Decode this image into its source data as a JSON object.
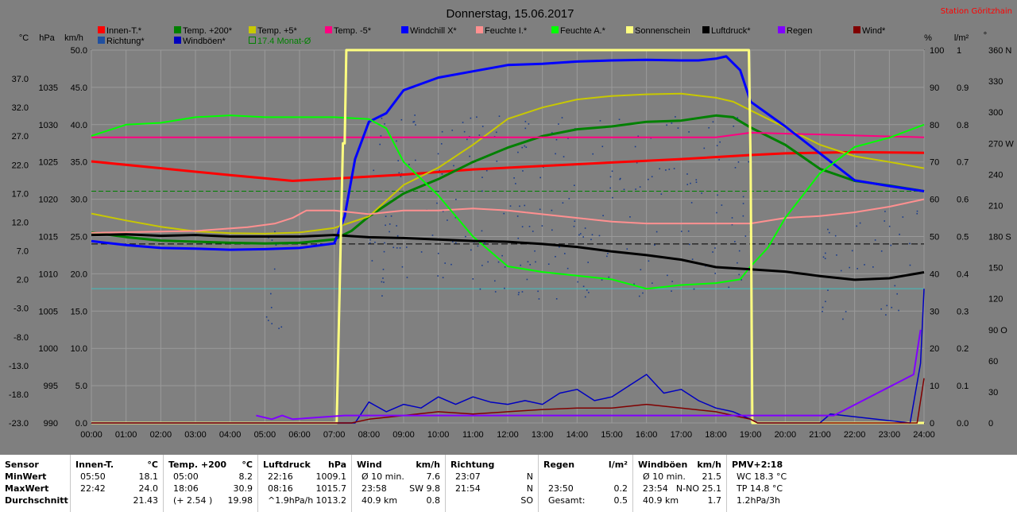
{
  "chart_data": {
    "type": "line",
    "title": "Donnerstag, 15.06.2017",
    "station": "Station Göritzhain",
    "axis_units": {
      "c": "°C",
      "hpa": "hPa",
      "kmh": "km/h",
      "pct": "%",
      "lm2": "l/m²",
      "deg": "°"
    },
    "x_labels": [
      "00:00",
      "01:00",
      "02:00",
      "03:00",
      "04:00",
      "05:00",
      "06:00",
      "07:00",
      "08:00",
      "09:00",
      "10:00",
      "11:00",
      "12:00",
      "13:00",
      "14:00",
      "15:00",
      "16:00",
      "17:00",
      "18:00",
      "19:00",
      "20:00",
      "21:00",
      "22:00",
      "23:00",
      "24:00"
    ],
    "xlim": [
      0,
      24
    ],
    "y_temp_ticks": [
      "37.0",
      "32.0",
      "27.0",
      "22.0",
      "17.0",
      "12.0",
      "7.0",
      "2.0",
      "-3.0",
      "-8.0",
      "-13.0",
      "-18.0",
      "-23.0"
    ],
    "y_temp_lim": [
      -23,
      42
    ],
    "y_hpa_ticks": [
      "1035",
      "1030",
      "1025",
      "1020",
      "1015",
      "1010",
      "1005",
      "1000",
      "995",
      "990"
    ],
    "y_hpa_lim": [
      990,
      1040
    ],
    "y_kmh_ticks": [
      "50.0",
      "45.0",
      "40.0",
      "35.0",
      "30.0",
      "25.0",
      "20.0",
      "15.0",
      "10.0",
      "5.0",
      "0.0"
    ],
    "y_kmh_lim": [
      0,
      50
    ],
    "y_pct_ticks": [
      "100",
      "90",
      "80",
      "70",
      "60",
      "50",
      "40",
      "30",
      "20",
      "10",
      "0"
    ],
    "y_lm2_ticks": [
      "1",
      "0.9",
      "0.8",
      "0.7",
      "0.6",
      "0.5",
      "0.4",
      "0.3",
      "0.2",
      "0.1",
      "0.0"
    ],
    "y_deg_ticks": [
      "360 N",
      "330",
      "300",
      "270 W",
      "240",
      "210",
      "180 S",
      "150",
      "120",
      "90 O",
      "60",
      "30",
      "0"
    ],
    "legend": [
      {
        "label": "Innen-T.*",
        "color": "#ff0000"
      },
      {
        "label": "Temp. +200*",
        "color": "#008000"
      },
      {
        "label": "Temp. +5*",
        "color": "#c8c800"
      },
      {
        "label": "Temp. -5*",
        "color": "#ff0080"
      },
      {
        "label": "Windchill X*",
        "color": "#0000ff"
      },
      {
        "label": "Feuchte I.*",
        "color": "#ff9090"
      },
      {
        "label": "Feuchte A.*",
        "color": "#00ff00"
      },
      {
        "label": "Sonnenschein",
        "color": "#ffff80"
      },
      {
        "label": "Luftdruck*",
        "color": "#000000"
      },
      {
        "label": "Regen",
        "color": "#8000ff"
      },
      {
        "label": "Wind*",
        "color": "#800000"
      },
      {
        "label": "Richtung*",
        "color": "#2050a0"
      },
      {
        "label": "Windböen*",
        "color": "#0000c0"
      },
      {
        "label": "17.4 Monat-Ø",
        "color": "#008000",
        "outline": true
      }
    ],
    "ref_lines": {
      "month_avg_temp": 17.4,
      "pressure_ref": 1014,
      "humidity_ref": 36
    },
    "series": [
      {
        "name": "Innen-T.*",
        "color": "#ff0000",
        "axis": "temp",
        "width": 3,
        "x": [
          0,
          2,
          4,
          5.8,
          7,
          9,
          11,
          13,
          15,
          17,
          19,
          20,
          22,
          24
        ],
        "y": [
          22.6,
          21.4,
          20.2,
          19.2,
          19.6,
          20.3,
          21.2,
          21.8,
          22.4,
          23,
          23.7,
          24,
          24.2,
          24.1
        ]
      },
      {
        "name": "Temp. +200*",
        "color": "#008000",
        "axis": "temp",
        "width": 3,
        "x": [
          0,
          1,
          2,
          3,
          4,
          5,
          6,
          7,
          7.5,
          8,
          9,
          10,
          11,
          12,
          13,
          14,
          15,
          16,
          17,
          18,
          18.5,
          19,
          20,
          21,
          22,
          23,
          24
        ],
        "y": [
          10.2,
          9.4,
          8.8,
          8.6,
          8.4,
          8.3,
          8.4,
          9,
          10.5,
          13,
          17,
          19.5,
          22.5,
          25,
          27,
          28.2,
          28.7,
          29.5,
          29.7,
          30.6,
          30.3,
          28.5,
          25.5,
          21.3,
          19.2,
          18.4,
          17.4
        ]
      },
      {
        "name": "Temp. +5*",
        "color": "#c8c800",
        "axis": "temp",
        "width": 2,
        "x": [
          0,
          1,
          2,
          3,
          4,
          5,
          6,
          7,
          7.5,
          8,
          9,
          10,
          11,
          12,
          13,
          14,
          15,
          16,
          17,
          18,
          18.5,
          19,
          20,
          21,
          22,
          23,
          24
        ],
        "y": [
          13.5,
          12.3,
          11.2,
          10.4,
          10.1,
          10,
          10.2,
          11,
          12,
          13,
          18.5,
          21.5,
          25.5,
          30,
          32,
          33.4,
          34,
          34.3,
          34.4,
          33.7,
          33,
          31.5,
          28.5,
          25.5,
          23.5,
          22.5,
          21.4
        ]
      },
      {
        "name": "Temp. -5*",
        "color": "#ff0080",
        "axis": "temp",
        "width": 2,
        "x": [
          0,
          18,
          19,
          24
        ],
        "y": [
          26.8,
          26.8,
          27.6,
          26.8
        ]
      },
      {
        "name": "Windchill X*",
        "color": "#0000ff",
        "axis": "temp",
        "width": 3,
        "x": [
          0,
          1,
          2,
          3,
          4,
          5,
          6,
          7,
          7.3,
          7.6,
          8,
          8.5,
          9,
          10,
          11,
          12,
          13,
          14,
          15,
          16,
          17,
          17.5,
          18,
          18.3,
          18.7,
          19,
          20,
          21,
          22,
          23,
          24
        ],
        "y": [
          8.7,
          8,
          7.5,
          7.4,
          7.2,
          7.3,
          7.5,
          8.3,
          13,
          23,
          29.5,
          31,
          35,
          37.2,
          38.3,
          39.4,
          39.6,
          40,
          40.2,
          40.3,
          40.2,
          40.2,
          40.5,
          40.9,
          38.5,
          33,
          28.7,
          24,
          19.3,
          18.3,
          17.4
        ]
      },
      {
        "name": "Feuchte I.*",
        "color": "#ff9090",
        "axis": "pct",
        "width": 2,
        "x": [
          0,
          3,
          4.5,
          5.3,
          5.8,
          6.2,
          7,
          8,
          9,
          10,
          11,
          12,
          14,
          15,
          16,
          17,
          18,
          19,
          20,
          21,
          22,
          23,
          24
        ],
        "y": [
          51,
          51.5,
          52.5,
          53.5,
          55,
          57,
          57,
          56,
          57,
          57,
          57.5,
          57,
          55,
          54,
          53.5,
          53.5,
          53.5,
          53.5,
          55,
          55.5,
          56.5,
          58,
          60
        ]
      },
      {
        "name": "Feuchte A.*",
        "color": "#00ff00",
        "axis": "pct",
        "width": 2,
        "x": [
          0,
          1,
          2,
          3,
          4,
          5,
          6,
          7,
          8,
          8.5,
          9,
          10,
          11,
          12,
          13,
          14,
          15,
          16,
          17,
          18,
          18.7,
          19,
          19.5,
          20,
          21,
          22,
          23,
          24
        ],
        "y": [
          77,
          80,
          80.5,
          82,
          82.5,
          82,
          82,
          82,
          81.5,
          79,
          70,
          61,
          50,
          42,
          40.5,
          39.5,
          38.5,
          36,
          37,
          37.5,
          38.5,
          42,
          47,
          55,
          67,
          74,
          76.5,
          80
        ]
      },
      {
        "name": "Luftdruck*",
        "color": "#000000",
        "axis": "hpa",
        "width": 3,
        "x": [
          0,
          1,
          2,
          3,
          4,
          5,
          6,
          7,
          8,
          9,
          10,
          11,
          12,
          13,
          14,
          15,
          16,
          17,
          18,
          19,
          20,
          21,
          22,
          23,
          24
        ],
        "y": [
          1015.2,
          1015.3,
          1015.1,
          1015.2,
          1015,
          1015,
          1015,
          1015.2,
          1014.9,
          1014.8,
          1014.6,
          1014.4,
          1014.3,
          1014,
          1013.6,
          1013,
          1012.5,
          1011.9,
          1010.9,
          1010.6,
          1010.3,
          1009.7,
          1009.2,
          1009.4,
          1010.2
        ]
      },
      {
        "name": "Sonnenschein",
        "color": "#ffff80",
        "axis": "pct",
        "width": 3,
        "x": [
          0,
          7.07,
          7.25,
          7.3,
          7.35,
          18.95,
          19,
          19.05,
          24
        ],
        "y": [
          0,
          0,
          75,
          75,
          100,
          100,
          70,
          0,
          0
        ]
      },
      {
        "name": "Windböen*",
        "color": "#0000c0",
        "axis": "kmh",
        "width": 1.5,
        "x": [
          0,
          7.6,
          8,
          8.5,
          9,
          9.5,
          10,
          10.5,
          11,
          11.5,
          12,
          12.5,
          13,
          13.5,
          14,
          14.5,
          15,
          15.5,
          16,
          16.5,
          17,
          17.5,
          18,
          18.5,
          19,
          19.2,
          21,
          21.3,
          23.6,
          23.9,
          24
        ],
        "y": [
          0,
          0,
          2.8,
          1.5,
          2.5,
          2,
          3.5,
          2.5,
          3.5,
          2.8,
          2.5,
          3,
          2.5,
          4,
          4.5,
          3,
          3.5,
          5,
          6.5,
          4,
          4.5,
          3,
          2,
          1.5,
          0.5,
          0,
          0,
          1.2,
          0,
          8,
          18
        ]
      },
      {
        "name": "Wind*",
        "color": "#800000",
        "axis": "kmh",
        "width": 1.5,
        "x": [
          0,
          7.5,
          8,
          9,
          10,
          11,
          12,
          13,
          14,
          15,
          16,
          17,
          18,
          19,
          19.2,
          23.8,
          24
        ],
        "y": [
          0,
          0,
          0.5,
          1,
          1.5,
          1.2,
          1.5,
          1.8,
          2,
          2,
          2.5,
          2,
          1.5,
          0.5,
          0,
          0,
          6
        ]
      },
      {
        "name": "Regen",
        "color": "#8000ff",
        "axis": "lm2",
        "width": 2,
        "x": [
          4.75,
          5.2,
          5.5,
          5.8,
          7.3,
          21.4,
          23.7,
          23.9
        ],
        "y": [
          0.02,
          0.01,
          0.02,
          0.01,
          0.02,
          0.02,
          0.13,
          0.25
        ]
      }
    ]
  },
  "stats": [
    {
      "rows": [
        [
          "Sensor"
        ],
        [
          "MinWert"
        ],
        [
          "MaxWert"
        ],
        [
          "Durchschnitt"
        ]
      ]
    },
    {
      "head": [
        "Innen-T.",
        "°C"
      ],
      "rows": [
        [
          "05:50",
          "",
          "18.1"
        ],
        [
          "22:42",
          "",
          "24.0"
        ],
        [
          "",
          "",
          "21.43"
        ]
      ]
    },
    {
      "head": [
        "Temp. +200",
        "°C"
      ],
      "rows": [
        [
          "05:00",
          "",
          "8.2"
        ],
        [
          "18:06",
          "",
          "30.9"
        ],
        [
          "(+ 2.54 )",
          "",
          "19.98"
        ]
      ]
    },
    {
      "head": [
        "Luftdruck",
        "hPa"
      ],
      "rows": [
        [
          "22:16",
          "",
          "1009.1"
        ],
        [
          "08:16",
          "",
          "1015.7"
        ],
        [
          "^1.9hPa/h",
          "",
          "1013.2"
        ]
      ]
    },
    {
      "head": [
        "Wind",
        "km/h"
      ],
      "rows": [
        [
          "Ø 10 min.",
          "",
          "7.6"
        ],
        [
          "23:58",
          "SW 9.8",
          ""
        ],
        [
          "40.9 km",
          "",
          "0.8"
        ]
      ]
    },
    {
      "head": [
        "Richtung",
        ""
      ],
      "rows": [
        [
          "23:07",
          "",
          "N"
        ],
        [
          "21:54",
          "",
          "N"
        ],
        [
          "",
          "",
          "SO"
        ]
      ]
    },
    {
      "head": [
        "Regen",
        "l/m²"
      ],
      "rows": [
        [
          "",
          "",
          ""
        ],
        [
          "23:50",
          "",
          "0.2"
        ],
        [
          "Gesamt:",
          "",
          "0.5"
        ]
      ]
    },
    {
      "head": [
        "Windböen",
        "km/h"
      ],
      "rows": [
        [
          "Ø 10 min.",
          "",
          "21.5"
        ],
        [
          "23:54",
          "N-NO 25.1",
          ""
        ],
        [
          "40.9 km",
          "",
          "1.7"
        ]
      ]
    },
    {
      "head": [
        "PMV+2:18",
        ""
      ],
      "rows": [
        [
          "WC 18.3 °C",
          "",
          ""
        ],
        [
          "TP 14.8 °C",
          "",
          ""
        ],
        [
          "1.2hPa/3h",
          "",
          ""
        ]
      ]
    }
  ]
}
